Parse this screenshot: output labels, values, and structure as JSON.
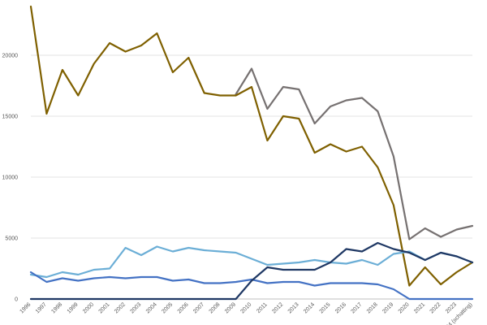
{
  "chart_data": {
    "type": "line",
    "title": "",
    "xlabel": "",
    "ylabel": "",
    "ylim": [
      0,
      24000
    ],
    "yticks": [
      0,
      5000,
      10000,
      15000,
      20000
    ],
    "grid": true,
    "categories": [
      "1996",
      "1997",
      "1998",
      "1999",
      "2000",
      "2001",
      "2002",
      "2003",
      "2004",
      "2005",
      "2006",
      "2007",
      "2008",
      "2009",
      "2010",
      "2011",
      "2012",
      "2013",
      "2014",
      "2015",
      "2016",
      "2017",
      "2018",
      "2019",
      "2020",
      "2021",
      "2022",
      "2023",
      "2024 (schatting)"
    ],
    "series": [
      {
        "color": "#767171",
        "values": [
          null,
          null,
          null,
          null,
          null,
          null,
          null,
          null,
          null,
          null,
          null,
          null,
          null,
          16800,
          18900,
          15600,
          17400,
          17200,
          14400,
          15800,
          16300,
          16500,
          15400,
          11700,
          4900,
          5800,
          5100,
          5700,
          6000
        ]
      },
      {
        "color": "#7f6000",
        "values": [
          24000,
          15200,
          18800,
          16700,
          19300,
          21000,
          20300,
          20800,
          21800,
          18600,
          19800,
          16900,
          16700,
          16700,
          17400,
          13000,
          15000,
          14800,
          12000,
          12700,
          12100,
          12500,
          10800,
          7700,
          1100,
          2600,
          1200,
          2200,
          3000
        ]
      },
      {
        "color": "#6baed6",
        "values": [
          2000,
          1800,
          2200,
          2000,
          2400,
          2500,
          4200,
          3600,
          4300,
          3900,
          4200,
          4000,
          3900,
          3800,
          3300,
          2800,
          2900,
          3000,
          3200,
          3000,
          2900,
          3200,
          2800,
          3700,
          3900,
          3200,
          3800,
          3500,
          3000
        ]
      },
      {
        "color": "#4472c4",
        "values": [
          2200,
          1400,
          1700,
          1500,
          1700,
          1800,
          1700,
          1800,
          1800,
          1500,
          1600,
          1300,
          1300,
          1400,
          1600,
          1300,
          1400,
          1400,
          1100,
          1300,
          1300,
          1300,
          1200,
          800,
          0,
          0,
          0,
          0,
          0
        ]
      },
      {
        "color": "#1f3864",
        "values": [
          0,
          0,
          0,
          0,
          0,
          0,
          0,
          0,
          0,
          0,
          0,
          0,
          0,
          0,
          1500,
          2600,
          2400,
          2400,
          2400,
          3000,
          4100,
          3900,
          4600,
          4100,
          3800,
          3200,
          3800,
          3500,
          3000
        ]
      }
    ]
  }
}
